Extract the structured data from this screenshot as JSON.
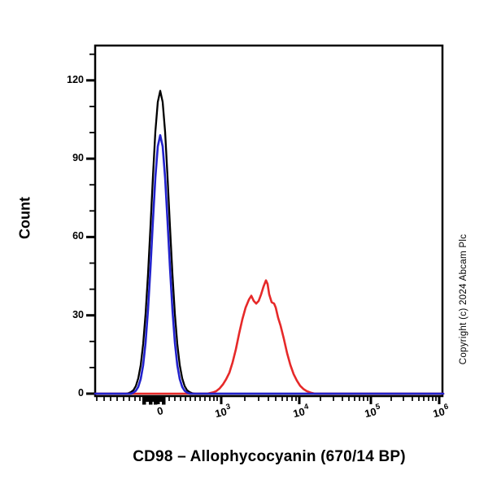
{
  "chart_data": {
    "type": "line",
    "subtype": "flow-cytometry-histogram",
    "title": "",
    "xlabel": "CD98 – Allophycocyanin (670/14 BP)",
    "ylabel": "Count",
    "copyright": "Copyright (c) 2024 Abcam Plc",
    "x_scale": "biexponential",
    "grid": false,
    "legend": false,
    "ylim": [
      0,
      133
    ],
    "y_major_ticks": [
      0,
      30,
      60,
      90,
      120
    ],
    "y_minor_ticks": [
      10,
      20,
      40,
      50,
      70,
      80,
      100,
      110,
      130
    ],
    "x_major_ticks": [
      {
        "base": "0",
        "exp": "",
        "pos": 78
      },
      {
        "base": "10",
        "exp": "3",
        "pos": 155
      },
      {
        "base": "10",
        "exp": "4",
        "pos": 251
      },
      {
        "base": "10",
        "exp": "5",
        "pos": 339
      },
      {
        "base": "10",
        "exp": "6",
        "pos": 423
      }
    ],
    "x_minor_ticks": [
      2,
      11,
      19,
      27,
      35,
      42,
      49,
      55,
      91,
      98,
      105,
      111,
      117,
      123,
      129,
      135,
      141,
      146,
      150,
      184,
      201,
      213,
      222,
      230,
      236,
      242,
      247,
      277,
      293,
      304,
      312,
      319,
      325,
      330,
      335,
      364,
      379,
      390,
      398,
      404,
      410,
      415,
      419
    ],
    "x_axis_blob": {
      "x": 58,
      "w": 28,
      "base_h": 6,
      "teeth": [
        58,
        66,
        72,
        82
      ],
      "tooth_w": 4.5,
      "tooth_h": 9.5
    },
    "series": [
      {
        "name": "black-curve",
        "color": "#000000",
        "stroke_width": 2.3,
        "peak_count": 116,
        "peak_at_x": "0",
        "points": [
          [
            0,
            0
          ],
          [
            38,
            0
          ],
          [
            41,
            0.2
          ],
          [
            44,
            0.6
          ],
          [
            47,
            1.3
          ],
          [
            50,
            2.9
          ],
          [
            53,
            5.9
          ],
          [
            56,
            10.9
          ],
          [
            59,
            19
          ],
          [
            62,
            30.6
          ],
          [
            65,
            45.8
          ],
          [
            68,
            63.9
          ],
          [
            71,
            82.9
          ],
          [
            74,
            100.3
          ],
          [
            77,
            111.7
          ],
          [
            80,
            116
          ],
          [
            83,
            111.7
          ],
          [
            86,
            100.3
          ],
          [
            89,
            82.9
          ],
          [
            92,
            63.9
          ],
          [
            95,
            45.8
          ],
          [
            98,
            30.6
          ],
          [
            101,
            19
          ],
          [
            104,
            10.9
          ],
          [
            107,
            5.9
          ],
          [
            110,
            2.9
          ],
          [
            113,
            1.3
          ],
          [
            116,
            0.6
          ],
          [
            119,
            0.2
          ],
          [
            123,
            0
          ],
          [
            428,
            0
          ]
        ]
      },
      {
        "name": "red-curve",
        "color": "#e62929",
        "stroke_width": 2.6,
        "peak_count": 43,
        "peak_at_x": "3e3",
        "points": [
          [
            0,
            0
          ],
          [
            138,
            0
          ],
          [
            145,
            0.5
          ],
          [
            149,
            1
          ],
          [
            153,
            2
          ],
          [
            157,
            3.5
          ],
          [
            161,
            5.5
          ],
          [
            165,
            8
          ],
          [
            169,
            12
          ],
          [
            173,
            17
          ],
          [
            177,
            23
          ],
          [
            181,
            28.5
          ],
          [
            185,
            33
          ],
          [
            189,
            36
          ],
          [
            192,
            37.5
          ],
          [
            195,
            35.5
          ],
          [
            198,
            34.5
          ],
          [
            201,
            35.5
          ],
          [
            204,
            38
          ],
          [
            207,
            41
          ],
          [
            210,
            43.4
          ],
          [
            212,
            42
          ],
          [
            214,
            38
          ],
          [
            217,
            35
          ],
          [
            220,
            34.5
          ],
          [
            222,
            33
          ],
          [
            225,
            29
          ],
          [
            228,
            26
          ],
          [
            232,
            21
          ],
          [
            236,
            15.5
          ],
          [
            240,
            11
          ],
          [
            244,
            7.5
          ],
          [
            248,
            5
          ],
          [
            252,
            3
          ],
          [
            256,
            1.8
          ],
          [
            260,
            1
          ],
          [
            265,
            0.4
          ],
          [
            270,
            0
          ],
          [
            428,
            0
          ]
        ]
      },
      {
        "name": "blue-curve",
        "color": "#2222cc",
        "stroke_width": 2.6,
        "peak_count": 99,
        "peak_at_x": "0",
        "points": [
          [
            0,
            0
          ],
          [
            44,
            0
          ],
          [
            47,
            0.4
          ],
          [
            50,
            1.1
          ],
          [
            53,
            2.6
          ],
          [
            56,
            5.6
          ],
          [
            59,
            10.9
          ],
          [
            62,
            19.6
          ],
          [
            65,
            32.2
          ],
          [
            68,
            48.1
          ],
          [
            71,
            66
          ],
          [
            74,
            82.7
          ],
          [
            77,
            94.7
          ],
          [
            80,
            99
          ],
          [
            83,
            94.7
          ],
          [
            86,
            82.7
          ],
          [
            89,
            66
          ],
          [
            92,
            48.1
          ],
          [
            95,
            32.2
          ],
          [
            98,
            19.6
          ],
          [
            101,
            10.9
          ],
          [
            104,
            5.6
          ],
          [
            107,
            2.6
          ],
          [
            110,
            1.1
          ],
          [
            113,
            0.4
          ],
          [
            117,
            0
          ],
          [
            428,
            0
          ]
        ]
      }
    ]
  }
}
